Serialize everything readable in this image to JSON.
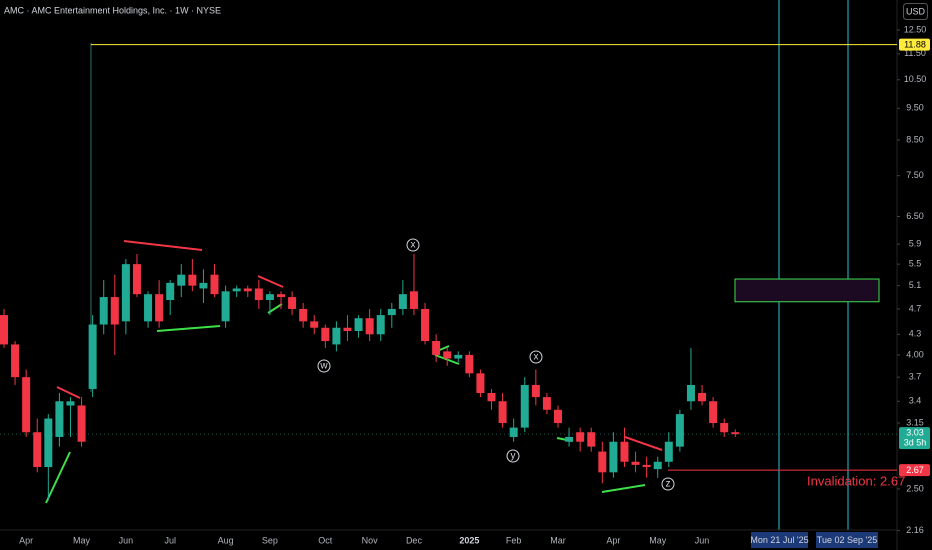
{
  "chart_data": {
    "type": "candlestick",
    "title": "AMC · AMC Entertainment Holdings, Inc. · 1W · NYSE",
    "currency": "USD",
    "categories": [
      null,
      null,
      "Apr",
      null,
      null,
      null,
      null,
      "May",
      null,
      null,
      null,
      "Jun",
      null,
      null,
      null,
      "Jul",
      null,
      null,
      null,
      null,
      "Aug",
      null,
      null,
      null,
      "Sep",
      null,
      null,
      null,
      null,
      "Oct",
      null,
      null,
      null,
      "Nov",
      null,
      null,
      null,
      "Dec",
      null,
      null,
      null,
      null,
      "2025",
      null,
      null,
      null,
      "Feb",
      null,
      null,
      null,
      "Mar",
      null,
      null,
      null,
      null,
      "Apr",
      null,
      null,
      null,
      "May",
      null,
      null,
      null,
      "Jun",
      null,
      null,
      null
    ],
    "open": [
      4.6,
      4.15,
      3.7,
      3.05,
      2.7,
      3.0,
      3.35,
      3.35,
      3.55,
      4.45,
      4.9,
      4.5,
      5.5,
      4.5,
      4.95,
      4.85,
      5.1,
      5.3,
      5.05,
      5.3,
      4.5,
      5.0,
      5.05,
      5.05,
      4.85,
      4.95,
      4.9,
      4.7,
      4.5,
      4.4,
      4.15,
      4.4,
      4.35,
      4.55,
      4.3,
      4.6,
      4.7,
      5.0,
      4.7,
      4.2,
      4.05,
      3.95,
      4.0,
      3.75,
      3.5,
      3.4,
      3.0,
      3.1,
      3.6,
      3.45,
      3.3,
      2.95,
      3.05,
      3.05,
      2.85,
      2.65,
      2.95,
      2.75,
      2.72,
      2.68,
      2.75,
      2.9,
      3.4,
      3.5,
      3.4,
      3.15,
      3.05
    ],
    "high": [
      4.7,
      4.2,
      3.8,
      3.2,
      3.25,
      3.5,
      3.45,
      3.45,
      4.6,
      5.2,
      5.3,
      5.6,
      5.7,
      5.0,
      5.2,
      5.2,
      5.5,
      5.6,
      5.4,
      5.5,
      5.1,
      5.1,
      5.1,
      5.2,
      5.0,
      5.0,
      5.0,
      4.8,
      4.6,
      4.45,
      4.5,
      4.6,
      4.6,
      4.7,
      4.7,
      4.8,
      5.2,
      5.7,
      4.8,
      4.3,
      4.1,
      4.05,
      4.05,
      3.8,
      3.55,
      3.5,
      3.2,
      3.7,
      3.8,
      3.5,
      3.35,
      3.1,
      3.1,
      3.1,
      2.95,
      3.05,
      3.1,
      2.85,
      2.8,
      2.8,
      3.05,
      3.3,
      4.1,
      3.6,
      3.45,
      3.2,
      3.08
    ],
    "low": [
      4.1,
      3.6,
      3.0,
      2.65,
      2.4,
      2.9,
      3.0,
      2.9,
      3.45,
      4.3,
      4.0,
      4.3,
      4.9,
      4.4,
      4.4,
      4.6,
      4.9,
      5.0,
      4.8,
      4.9,
      4.4,
      4.9,
      4.9,
      4.7,
      4.6,
      4.7,
      4.6,
      4.4,
      4.3,
      4.1,
      4.05,
      4.2,
      4.25,
      4.2,
      4.2,
      4.4,
      4.6,
      4.6,
      4.15,
      3.9,
      3.85,
      3.9,
      3.7,
      3.45,
      3.3,
      3.1,
      2.95,
      3.05,
      3.35,
      3.25,
      3.1,
      2.9,
      2.85,
      2.85,
      2.55,
      2.6,
      2.7,
      2.65,
      2.6,
      2.6,
      2.7,
      2.85,
      3.3,
      3.35,
      3.1,
      3.0,
      3.0
    ],
    "close": [
      4.15,
      3.7,
      3.05,
      2.7,
      3.2,
      3.4,
      3.4,
      2.95,
      4.45,
      4.9,
      4.45,
      5.5,
      4.95,
      4.95,
      4.5,
      5.15,
      5.3,
      5.1,
      5.15,
      4.95,
      5.0,
      5.05,
      5.0,
      4.85,
      4.95,
      4.9,
      4.7,
      4.5,
      4.4,
      4.2,
      4.4,
      4.35,
      4.55,
      4.3,
      4.6,
      4.7,
      4.95,
      4.7,
      4.2,
      4.0,
      3.95,
      4.0,
      3.75,
      3.5,
      3.4,
      3.15,
      3.1,
      3.6,
      3.45,
      3.3,
      3.15,
      3.0,
      2.95,
      2.9,
      2.65,
      2.95,
      2.75,
      2.72,
      2.7,
      2.75,
      2.95,
      3.25,
      3.6,
      3.4,
      3.15,
      3.05,
      3.03
    ],
    "up_color": "#22ab94",
    "down_color": "#f23645",
    "log_scale": true,
    "ylim": [
      2.09,
      13.89
    ],
    "yticks": [
      {
        "value": 12.5,
        "label": "12.50"
      },
      {
        "value": 11.5,
        "label": "11.50"
      },
      {
        "value": 10.5,
        "label": "10.50"
      },
      {
        "value": 9.5,
        "label": "9.50"
      },
      {
        "value": 8.5,
        "label": "8.50"
      },
      {
        "value": 7.5,
        "label": "7.50"
      },
      {
        "value": 6.5,
        "label": "6.50"
      },
      5.9,
      5.5,
      5.1,
      4.7,
      4.3,
      {
        "value": 4.0,
        "label": "4.00"
      },
      3.7,
      3.4,
      3.15,
      {
        "value": 2.5,
        "label": "2.50"
      },
      2.16
    ],
    "price_lines": [
      {
        "value": 11.88,
        "color": "#ffeb3b"
      },
      {
        "value": 2.67,
        "color": "#f23645"
      }
    ],
    "last_price": {
      "value": 3.03,
      "countdown": "3d 5h"
    },
    "zone": {
      "top": 5.22,
      "bottom": 4.82
    },
    "annotation": "Invalidation: 2.67",
    "wave_labels": [
      "x",
      "w",
      "x",
      "y",
      "z"
    ],
    "date_markers": [
      "Mon 21 Jul '25",
      "Tue 02 Sep '25"
    ]
  }
}
